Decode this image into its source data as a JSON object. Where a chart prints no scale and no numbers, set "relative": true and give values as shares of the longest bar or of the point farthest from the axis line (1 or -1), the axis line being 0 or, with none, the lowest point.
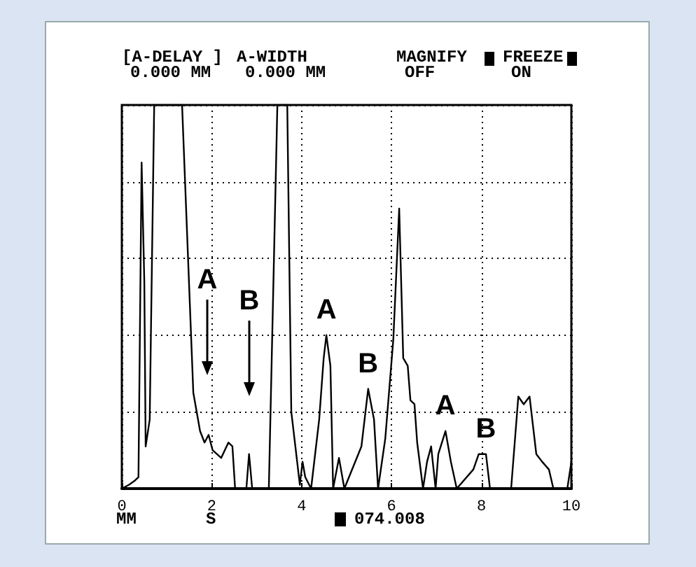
{
  "chart_data": {
    "type": "line",
    "relative": true,
    "xlabel": "MM",
    "xlim": [
      0,
      10
    ],
    "xticks": [
      0,
      2,
      4,
      6,
      8,
      10
    ],
    "grid": true,
    "marker": "none",
    "line_style": "solid",
    "x": [
      0,
      0.16,
      0.28,
      0.37,
      0.44,
      0.5,
      0.53,
      0.62,
      0.72,
      0.84,
      1.34,
      1.59,
      1.74,
      1.84,
      1.93,
      2.02,
      2.21,
      2.37,
      2.46,
      2.52,
      2.77,
      2.83,
      2.9,
      3.27,
      3.46,
      3.68,
      3.77,
      3.86,
      3.96,
      4.02,
      4.08,
      4.21,
      4.39,
      4.49,
      4.55,
      4.64,
      4.7,
      4.83,
      4.95,
      5.33,
      5.48,
      5.61,
      5.7,
      5.86,
      6.04,
      6.17,
      6.26,
      6.36,
      6.42,
      6.51,
      6.57,
      6.7,
      6.79,
      6.88,
      6.98,
      7.04,
      7.2,
      7.32,
      7.45,
      7.82,
      7.94,
      8.1,
      8.19,
      8.66,
      8.82,
      8.94,
      9.07,
      9.22,
      9.35,
      9.5,
      9.6,
      9.91,
      10
    ],
    "series": [
      {
        "color": "#000000",
        "values": [
          0,
          0.01,
          0.02,
          0.03,
          0.85,
          0.54,
          0.11,
          0.18,
          1,
          1,
          1,
          0.25,
          0.15,
          0.12,
          0.14,
          0.1,
          0.08,
          0.12,
          0.11,
          0,
          0,
          0.09,
          0,
          0,
          1,
          1,
          0.2,
          0.11,
          0.01,
          0.07,
          0.03,
          0,
          0.18,
          0.34,
          0.4,
          0.32,
          0,
          0.08,
          0,
          0.11,
          0.26,
          0.18,
          0,
          0.13,
          0.39,
          0.73,
          0.34,
          0.32,
          0.23,
          0.22,
          0.12,
          0,
          0.07,
          0.11,
          0,
          0.09,
          0.15,
          0.07,
          0,
          0.05,
          0.09,
          0.09,
          0,
          0,
          0.24,
          0.22,
          0.24,
          0.09,
          0.07,
          0.05,
          0,
          0,
          0.07
        ]
      }
    ],
    "annotations": [
      "[A-DELAY ]",
      "0.000 MM",
      "A-WIDTH",
      "0.000 MM",
      "MAGNIFY",
      "OFF",
      "FREEZE",
      "ON",
      "S",
      "074.008",
      "A",
      "B",
      {
        "text": "A",
        "x": 4.55,
        "y": 0.4
      },
      {
        "text": "B",
        "x": 5.48,
        "y": 0.26
      },
      {
        "text": "A",
        "x": 7.2,
        "y": 0.15
      },
      {
        "text": "B",
        "x": 8.1,
        "y": 0.09
      }
    ]
  }
}
